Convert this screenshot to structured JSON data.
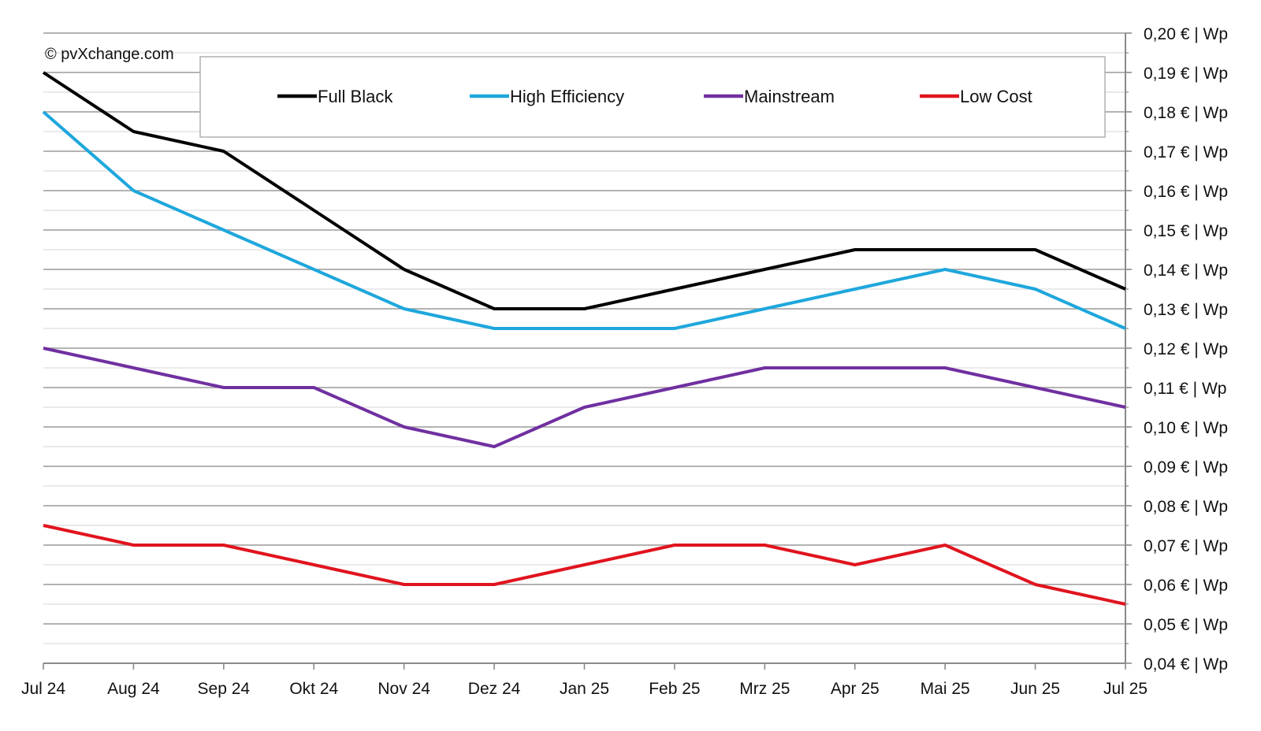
{
  "chart_data": {
    "type": "line",
    "copyright": "© pvXchange.com",
    "categories": [
      "Jul 24",
      "Aug 24",
      "Sep 24",
      "Okt 24",
      "Nov 24",
      "Dez 24",
      "Jan 25",
      "Feb 25",
      "Mrz 25",
      "Apr 25",
      "Mai 25",
      "Jun 25",
      "Jul 25"
    ],
    "y_ticks": [
      {
        "value": 0.2,
        "label": "0,20 € | Wp"
      },
      {
        "value": 0.19,
        "label": "0,19 € | Wp"
      },
      {
        "value": 0.18,
        "label": "0,18 € | Wp"
      },
      {
        "value": 0.17,
        "label": "0,17 € | Wp"
      },
      {
        "value": 0.16,
        "label": "0,16 € | Wp"
      },
      {
        "value": 0.15,
        "label": "0,15 € | Wp"
      },
      {
        "value": 0.14,
        "label": "0,14 € | Wp"
      },
      {
        "value": 0.13,
        "label": "0,13 € | Wp"
      },
      {
        "value": 0.12,
        "label": "0,12 € | Wp"
      },
      {
        "value": 0.11,
        "label": "0,11 € | Wp"
      },
      {
        "value": 0.1,
        "label": "0,10 € | Wp"
      },
      {
        "value": 0.09,
        "label": "0,09 € | Wp"
      },
      {
        "value": 0.08,
        "label": "0,08 € | Wp"
      },
      {
        "value": 0.07,
        "label": "0,07 € | Wp"
      },
      {
        "value": 0.06,
        "label": "0,06 € | Wp"
      },
      {
        "value": 0.05,
        "label": "0,05 € | Wp"
      },
      {
        "value": 0.04,
        "label": "0,04 € | Wp"
      }
    ],
    "ylim": [
      0.04,
      0.2
    ],
    "grid": true,
    "y_axis_side": "right",
    "legend_position": "top",
    "series": [
      {
        "name": "Full Black",
        "color": "#000000",
        "values": [
          0.19,
          0.175,
          0.17,
          0.155,
          0.14,
          0.13,
          0.13,
          0.135,
          0.14,
          0.145,
          0.145,
          0.145,
          0.135
        ]
      },
      {
        "name": "High Efficiency",
        "color": "#1ea7dc",
        "values": [
          0.18,
          0.16,
          0.15,
          0.14,
          0.13,
          0.125,
          0.125,
          0.125,
          0.13,
          0.135,
          0.14,
          0.135,
          0.125
        ]
      },
      {
        "name": "Mainstream",
        "color": "#7030a0",
        "values": [
          0.12,
          0.115,
          0.11,
          0.11,
          0.1,
          0.095,
          0.105,
          0.11,
          0.115,
          0.115,
          0.115,
          0.11,
          0.105
        ]
      },
      {
        "name": "Low Cost",
        "color": "#e0141e",
        "values": [
          0.075,
          0.07,
          0.07,
          0.065,
          0.06,
          0.06,
          0.065,
          0.07,
          0.07,
          0.065,
          0.07,
          0.06,
          0.055
        ]
      }
    ]
  }
}
